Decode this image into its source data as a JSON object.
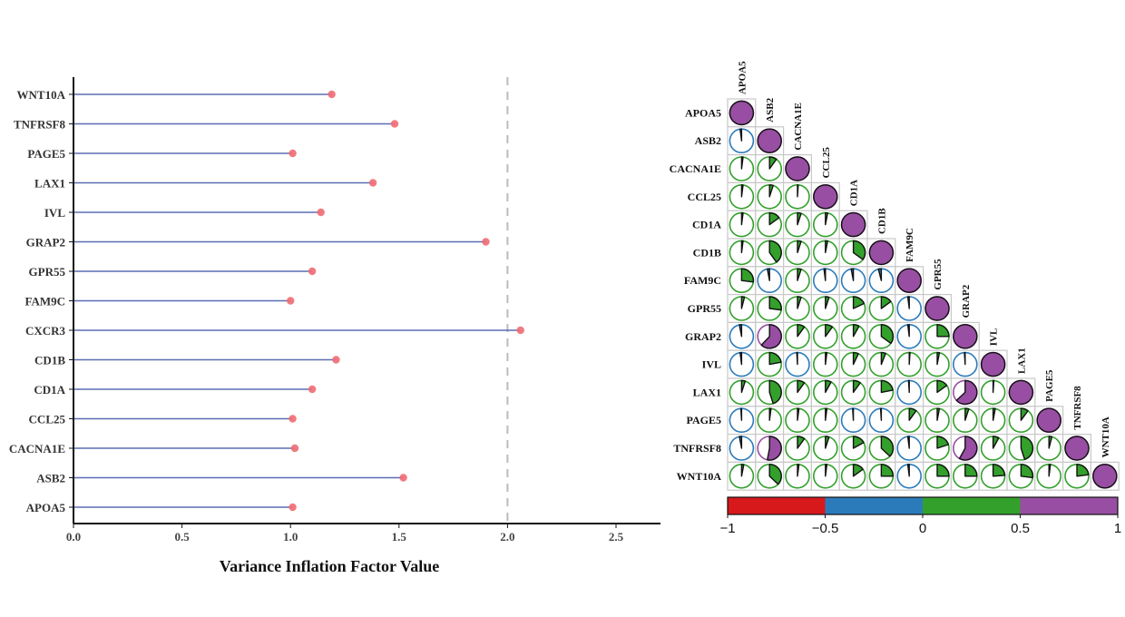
{
  "chart_data": [
    {
      "type": "lollipop",
      "orientation": "horizontal",
      "title": "",
      "xlabel": "Variance Inflation Factor Value",
      "ylabel": "",
      "xlim": [
        0,
        2.7
      ],
      "xticks": [
        0,
        0.5,
        1,
        1.5,
        2,
        2.5
      ],
      "xtick_labels": [
        "0.0",
        "0.5",
        "1.0",
        "1.5",
        "2.0",
        "2.5"
      ],
      "threshold_line": 2,
      "grid": false,
      "colors": {
        "stem": "#5b6db3",
        "point": "#ef6b73",
        "threshold": "#bbbbbb"
      },
      "categories": [
        "WNT10A",
        "TNFRSF8",
        "PAGE5",
        "LAX1",
        "IVL",
        "GRAP2",
        "GPR55",
        "FAM9C",
        "CXCR3",
        "CD1B",
        "CD1A",
        "CCL25",
        "CACNA1E",
        "ASB2",
        "APOA5"
      ],
      "values": [
        1.19,
        1.48,
        1.01,
        1.38,
        1.14,
        1.9,
        1.1,
        1.0,
        2.06,
        1.21,
        1.1,
        1.01,
        1.02,
        1.52,
        1.01
      ]
    },
    {
      "type": "heatmap",
      "subtype": "correlation-pie-lower-triangle",
      "title": "",
      "variables": [
        "APOA5",
        "ASB2",
        "CACNA1E",
        "CCL25",
        "CD1A",
        "CD1B",
        "FAM9C",
        "GPR55",
        "GRAP2",
        "IVL",
        "LAX1",
        "PAGE5",
        "TNFRSF8",
        "WNT10A"
      ],
      "matrix": [
        [
          1
        ],
        [
          -0.02,
          1
        ],
        [
          0.02,
          0.1,
          1
        ],
        [
          0.02,
          0.05,
          0.01,
          1
        ],
        [
          0.02,
          0.15,
          0.05,
          0.03,
          1
        ],
        [
          0.02,
          0.4,
          0.05,
          0.03,
          0.35,
          1
        ],
        [
          0.27,
          -0.03,
          0.05,
          -0.02,
          -0.03,
          -0.04,
          1
        ],
        [
          0.04,
          0.27,
          0.05,
          0.05,
          0.18,
          0.15,
          -0.02,
          1
        ],
        [
          -0.03,
          0.62,
          0.1,
          0.1,
          0.08,
          0.35,
          -0.02,
          0.25,
          1
        ],
        [
          -0.02,
          0.22,
          -0.01,
          0.02,
          0.07,
          0.06,
          0.01,
          0.03,
          -0.01,
          1
        ],
        [
          0.05,
          0.45,
          0.1,
          0.08,
          0.1,
          0.22,
          -0.01,
          0.15,
          0.63,
          0.01,
          1
        ],
        [
          -0.01,
          0.02,
          0.02,
          0.02,
          -0.01,
          -0.01,
          0.1,
          0.03,
          0.05,
          0.03,
          0.1,
          1
        ],
        [
          -0.03,
          0.53,
          0.1,
          0.05,
          0.17,
          0.37,
          -0.02,
          0.2,
          0.58,
          0.08,
          0.45,
          0.04,
          1
        ],
        [
          0.03,
          0.37,
          0.02,
          0.02,
          0.15,
          0.25,
          -0.02,
          0.25,
          0.25,
          0.24,
          0.27,
          0.02,
          0.23,
          1
        ]
      ],
      "colorbar": {
        "ticks": [
          "−1",
          "−0.5",
          "0",
          "0.5",
          "1"
        ],
        "bins": [
          {
            "from": -1,
            "to": -0.5,
            "color": "#d7191c"
          },
          {
            "from": -0.5,
            "to": 0,
            "color": "#2b7bba"
          },
          {
            "from": 0,
            "to": 0.5,
            "color": "#33a02c"
          },
          {
            "from": 0.5,
            "to": 1,
            "color": "#984ea3"
          }
        ]
      }
    }
  ]
}
